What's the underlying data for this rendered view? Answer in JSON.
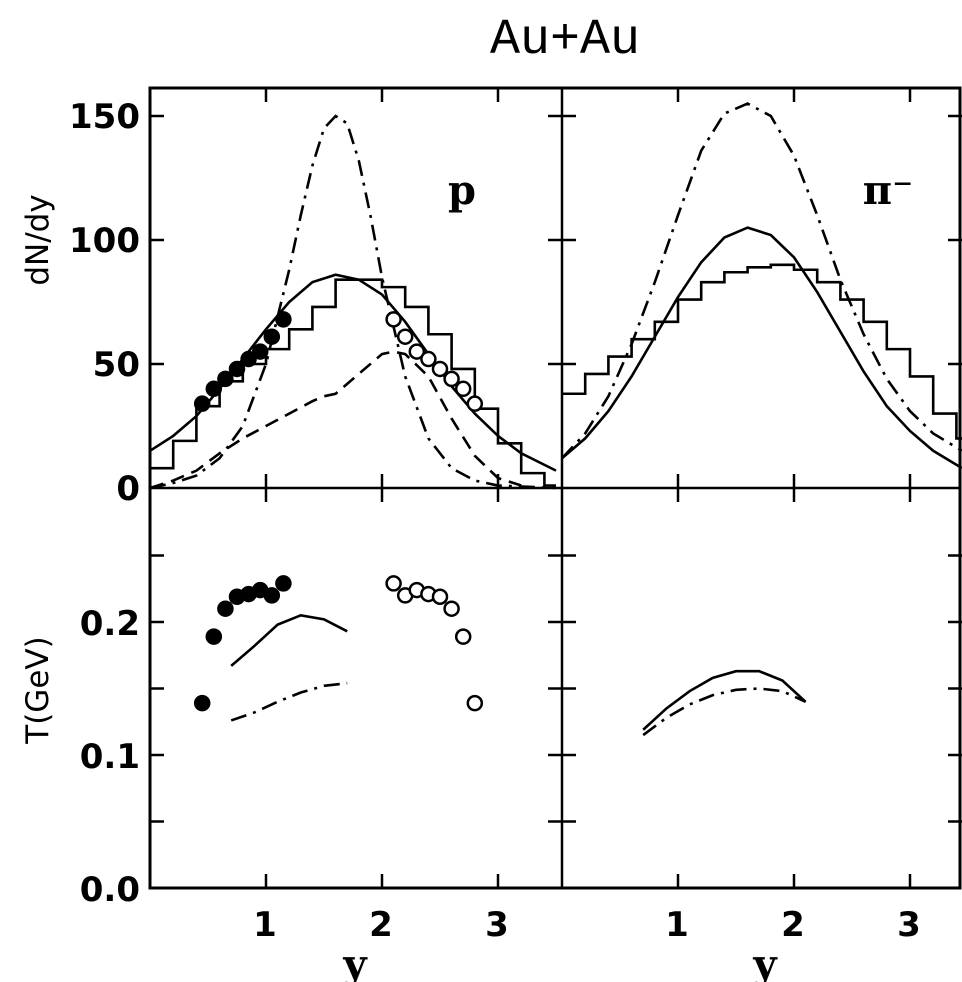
{
  "figure": {
    "title": "Au+Au",
    "x_label": "y",
    "top_y_label": "dN/dy",
    "bottom_y_label": "T(GeV)",
    "top_y_ticks": [
      "0",
      "50",
      "100",
      "150"
    ],
    "bottom_y_ticks": [
      "0.0",
      "0.1",
      "0.2"
    ],
    "x_ticks": [
      "1",
      "2",
      "3"
    ]
  },
  "chart_data": [
    {
      "panel": "p-dN/dy",
      "label": "p",
      "type": "line",
      "xlim": [
        0,
        3.5
      ],
      "ylim": [
        0,
        160
      ],
      "series": [
        {
          "style": "solid",
          "x": [
            0,
            0.2,
            0.4,
            0.6,
            0.8,
            1.0,
            1.2,
            1.4,
            1.6,
            1.8,
            2.0,
            2.2,
            2.4,
            2.6,
            2.8,
            3.0,
            3.2,
            3.5
          ],
          "y": [
            15,
            21,
            29,
            40,
            52,
            64,
            75,
            83,
            86,
            84,
            78,
            67,
            54,
            41,
            30,
            21,
            14,
            7
          ]
        },
        {
          "style": "dashdot",
          "x": [
            0,
            0.2,
            0.4,
            0.6,
            0.8,
            1.0,
            1.2,
            1.3,
            1.4,
            1.5,
            1.6,
            1.7,
            1.8,
            1.9,
            2.0,
            2.2,
            2.4,
            2.6,
            2.8,
            3.0,
            3.5
          ],
          "y": [
            0,
            2,
            5,
            12,
            25,
            50,
            88,
            110,
            130,
            145,
            150,
            147,
            132,
            110,
            85,
            45,
            20,
            8,
            3,
            1,
            0
          ]
        },
        {
          "style": "dashed",
          "x": [
            0,
            0.2,
            0.4,
            0.6,
            0.8,
            1.0,
            1.2,
            1.4,
            1.5,
            1.6,
            1.8,
            2.0,
            2.1,
            2.2,
            2.4,
            2.6,
            2.8,
            3.0,
            3.2
          ],
          "y": [
            0,
            3,
            7,
            14,
            20,
            25,
            30,
            35,
            37,
            38,
            46,
            54,
            55,
            54,
            45,
            28,
            13,
            4,
            1
          ]
        },
        {
          "style": "histogram",
          "edges": [
            0,
            0.2,
            0.4,
            0.6,
            0.8,
            1.0,
            1.2,
            1.4,
            1.6,
            1.8,
            2.0,
            2.2,
            2.4,
            2.6,
            2.8,
            3.0,
            3.2,
            3.4,
            3.5
          ],
          "values": [
            8,
            19,
            33,
            43,
            50,
            56,
            64,
            73,
            84,
            84,
            81,
            73,
            62,
            48,
            32,
            18,
            6,
            1
          ]
        },
        {
          "style": "filled-circles",
          "x": [
            0.45,
            0.55,
            0.65,
            0.75,
            0.85,
            0.95,
            1.05,
            1.15
          ],
          "y": [
            34,
            40,
            44,
            48,
            52,
            55,
            61,
            68
          ]
        },
        {
          "style": "open-circles",
          "x": [
            2.1,
            2.2,
            2.3,
            2.4,
            2.5,
            2.6,
            2.7,
            2.8
          ],
          "y": [
            68,
            61,
            55,
            52,
            48,
            44,
            40,
            34
          ]
        }
      ]
    },
    {
      "panel": "pi-dN/dy",
      "label": "π⁻",
      "type": "line",
      "xlim": [
        0,
        3.5
      ],
      "ylim": [
        0,
        160
      ],
      "series": [
        {
          "style": "solid",
          "x": [
            0,
            0.2,
            0.4,
            0.6,
            0.8,
            1.0,
            1.2,
            1.4,
            1.6,
            1.8,
            2.0,
            2.2,
            2.4,
            2.6,
            2.8,
            3.0,
            3.2,
            3.5
          ],
          "y": [
            12,
            20,
            31,
            45,
            61,
            77,
            91,
            101,
            105,
            102,
            93,
            79,
            63,
            47,
            33,
            23,
            15,
            8
          ]
        },
        {
          "style": "dashdot",
          "x": [
            0,
            0.2,
            0.4,
            0.6,
            0.8,
            1.0,
            1.2,
            1.4,
            1.6,
            1.8,
            2.0,
            2.2,
            2.4,
            2.6,
            2.8,
            3.0,
            3.2,
            3.5
          ],
          "y": [
            12,
            22,
            37,
            58,
            83,
            110,
            136,
            151,
            155,
            150,
            134,
            110,
            84,
            62,
            44,
            31,
            22,
            15
          ]
        },
        {
          "style": "histogram",
          "edges": [
            0,
            0.2,
            0.4,
            0.6,
            0.8,
            1.0,
            1.2,
            1.4,
            1.6,
            1.8,
            2.0,
            2.2,
            2.4,
            2.6,
            2.8,
            3.0,
            3.2,
            3.4,
            3.5
          ],
          "values": [
            38,
            46,
            53,
            60,
            67,
            76,
            83,
            87,
            89,
            90,
            88,
            83,
            76,
            67,
            56,
            45,
            30,
            20
          ]
        }
      ]
    },
    {
      "panel": "p-T",
      "type": "line",
      "xlim": [
        0,
        3.5
      ],
      "ylim": [
        0,
        0.3
      ],
      "series": [
        {
          "style": "solid",
          "x": [
            0.7,
            0.9,
            1.1,
            1.3,
            1.5,
            1.7
          ],
          "y": [
            0.167,
            0.182,
            0.198,
            0.205,
            0.202,
            0.193
          ]
        },
        {
          "style": "dashdot",
          "x": [
            0.7,
            0.9,
            1.1,
            1.3,
            1.5,
            1.7
          ],
          "y": [
            0.126,
            0.132,
            0.14,
            0.147,
            0.152,
            0.154
          ]
        },
        {
          "style": "filled-circles",
          "x": [
            0.45,
            0.55,
            0.65,
            0.75,
            0.85,
            0.95,
            1.05,
            1.15
          ],
          "y": [
            0.139,
            0.189,
            0.21,
            0.219,
            0.221,
            0.224,
            0.22,
            0.229
          ]
        },
        {
          "style": "open-circles",
          "x": [
            2.1,
            2.2,
            2.3,
            2.4,
            2.5,
            2.6,
            2.7,
            2.8
          ],
          "y": [
            0.229,
            0.22,
            0.224,
            0.221,
            0.219,
            0.21,
            0.189,
            0.139
          ]
        }
      ]
    },
    {
      "panel": "pi-T",
      "type": "line",
      "xlim": [
        0,
        3.5
      ],
      "ylim": [
        0,
        0.3
      ],
      "series": [
        {
          "style": "solid",
          "x": [
            0.7,
            0.9,
            1.1,
            1.3,
            1.5,
            1.7,
            1.9,
            2.1
          ],
          "y": [
            0.119,
            0.135,
            0.148,
            0.158,
            0.163,
            0.163,
            0.156,
            0.14
          ]
        },
        {
          "style": "dashdot",
          "x": [
            0.7,
            0.9,
            1.1,
            1.3,
            1.5,
            1.7,
            1.9,
            2.1
          ],
          "y": [
            0.115,
            0.128,
            0.138,
            0.145,
            0.149,
            0.15,
            0.148,
            0.14
          ]
        }
      ]
    }
  ]
}
